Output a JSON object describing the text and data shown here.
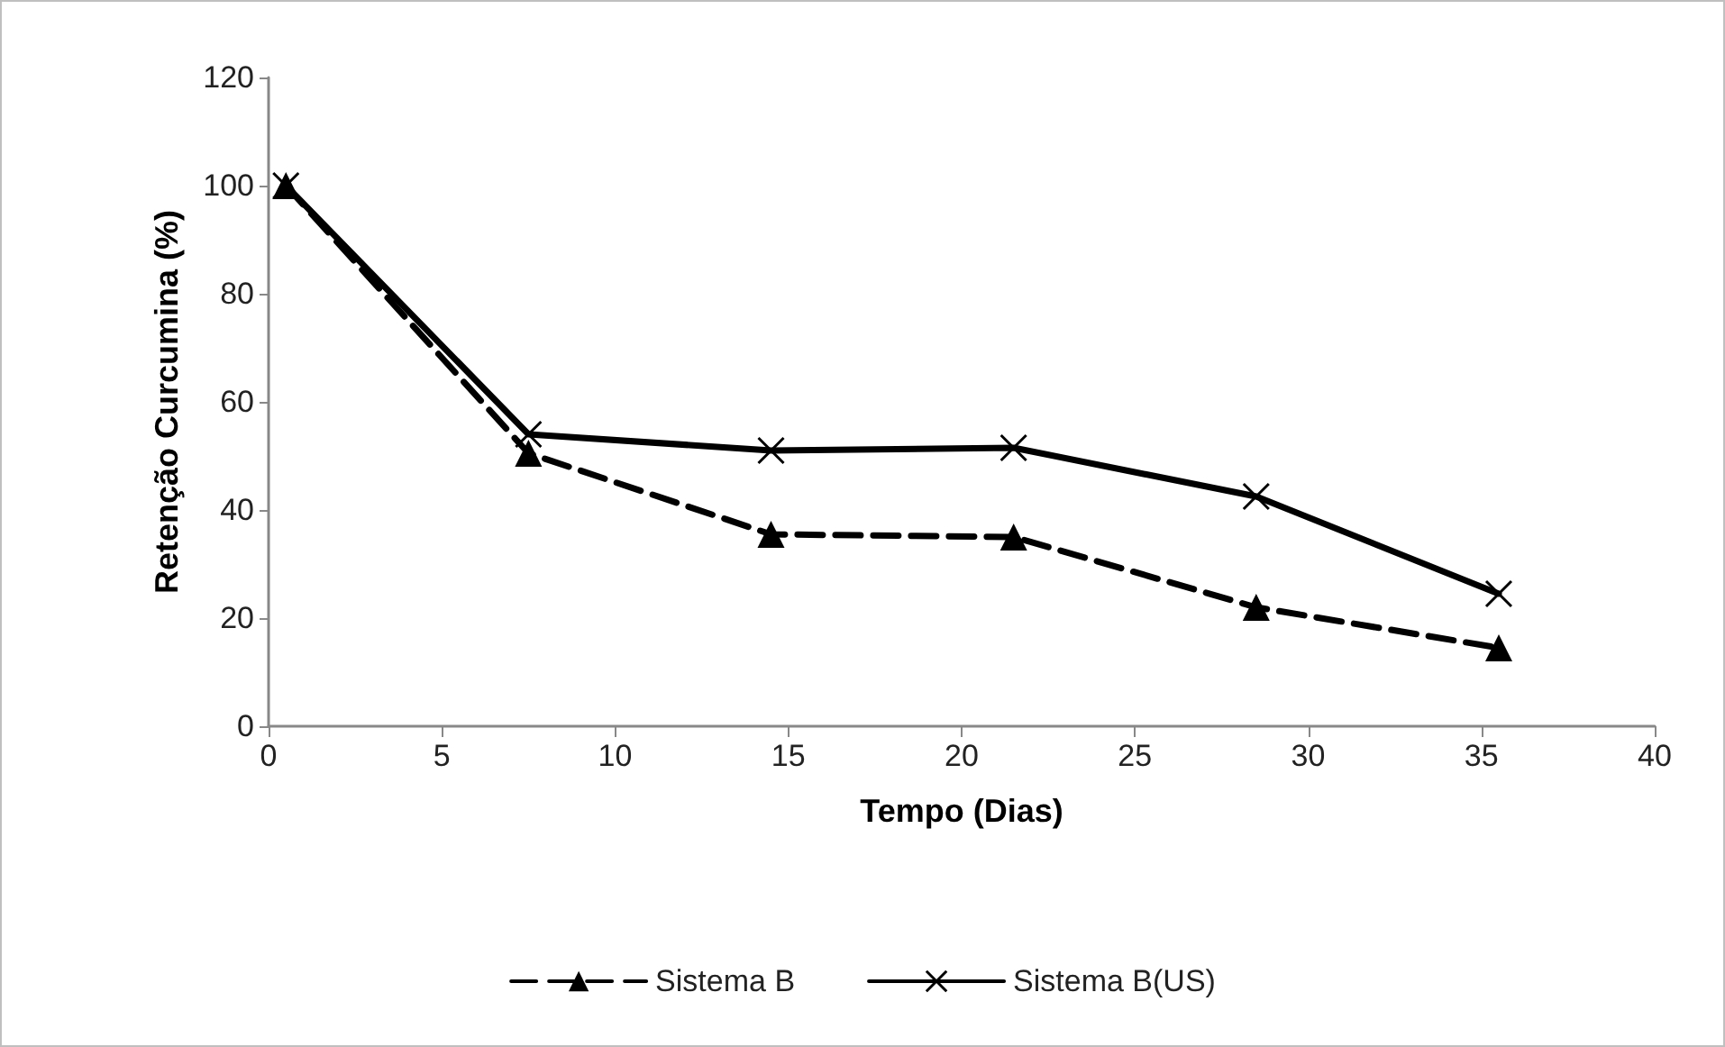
{
  "chart_data": {
    "type": "line",
    "xlabel": "Tempo (Dias)",
    "ylabel": "Retenção Curcumina (%)",
    "xlim": [
      0,
      40
    ],
    "xticks": [
      0,
      5,
      10,
      15,
      20,
      25,
      30,
      35,
      40
    ],
    "ylim": [
      0,
      120
    ],
    "yticks": [
      0,
      20,
      40,
      60,
      80,
      100,
      120
    ],
    "grid": false,
    "legend": "bottom",
    "series": [
      {
        "name": "Sistema B",
        "color": "#000000",
        "x": [
          0.5,
          7.5,
          14.5,
          21.5,
          28.5,
          35.5
        ],
        "values": [
          100,
          50.5,
          35.5,
          35,
          22,
          14.5
        ],
        "marker": "triangle",
        "line_style": "dashed"
      },
      {
        "name": "Sistema B(US)",
        "color": "#000000",
        "x": [
          0.5,
          7.5,
          14.5,
          21.5,
          28.5,
          35.5
        ],
        "values": [
          100,
          54,
          51,
          51.5,
          42.5,
          24.5
        ],
        "marker": "cross",
        "line_style": "solid"
      }
    ]
  }
}
